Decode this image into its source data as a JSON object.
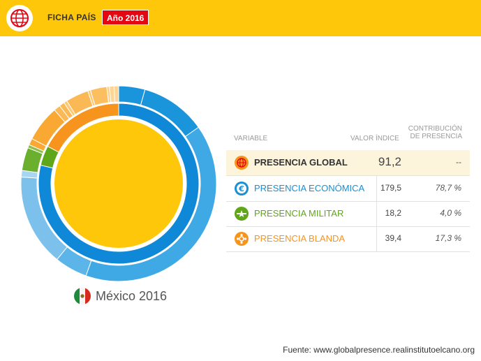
{
  "header": {
    "title": "FICHA PAÍS",
    "year_badge": "Año 2016",
    "colors": {
      "bar": "#fec70a",
      "badge": "#e30613"
    },
    "logo_icon": "globe-icon"
  },
  "country": {
    "name": "México 2016",
    "flag_icon": "mexico-flag-icon"
  },
  "table": {
    "headers": {
      "variable": "VARIABLE",
      "value": "VALOR ÍNDICE",
      "contribution_line1": "CONTRIBUCIÓN",
      "contribution_line2": "DE PRESENCIA"
    },
    "rows": [
      {
        "icon": "globe-icon",
        "label": "PRESENCIA GLOBAL",
        "value": "91,2",
        "contribution": "--",
        "color": "#333333",
        "bold": true
      },
      {
        "icon": "euro-icon",
        "label": "PRESENCIA ECONÓMICA",
        "value": "179,5",
        "contribution": "78,7 %",
        "color": "#1a8fd6"
      },
      {
        "icon": "military-star-icon",
        "label": "PRESENCIA MILITAR",
        "value": "18,2",
        "contribution": "4,0 %",
        "color": "#5fa619"
      },
      {
        "icon": "soft-power-icon",
        "label": "PRESENCIA BLANDA",
        "value": "39,4",
        "contribution": "17,3 %",
        "color": "#f7941d"
      }
    ]
  },
  "chart_data": {
    "type": "pie",
    "variant": "sunburst",
    "center": {
      "label": "Presencia global",
      "value": 91.2,
      "color": "#fec70a"
    },
    "rings": [
      {
        "name": "dimensions",
        "slices": [
          {
            "label": "Presencia económica",
            "value": 78.7,
            "color": "#0f88d8"
          },
          {
            "label": "Presencia militar",
            "value": 4.0,
            "color": "#5fa619"
          },
          {
            "label": "Presencia blanda",
            "value": 17.3,
            "color": "#f7941d"
          }
        ]
      },
      {
        "name": "indicators",
        "slices": [
          {
            "value": 4.0,
            "color": "#1a95dc"
          },
          {
            "value": 10.0,
            "color": "#1a95dc"
          },
          {
            "value": 37.0,
            "color": "#3fa9e5"
          },
          {
            "value": 5.0,
            "color": "#5cb5e8"
          },
          {
            "value": 14.0,
            "color": "#7cc1ec"
          },
          {
            "value": 1.0,
            "color": "#a8d6f2"
          },
          {
            "value": 3.5,
            "color": "#6aaf2d"
          },
          {
            "value": 0.5,
            "color": "#8cc04a"
          },
          {
            "value": 1.0,
            "color": "#f9a933"
          },
          {
            "value": 5.5,
            "color": "#f9a933"
          },
          {
            "value": 1.0,
            "color": "#fbb955"
          },
          {
            "value": 0.8,
            "color": "#fbb955"
          },
          {
            "value": 0.5,
            "color": "#fcc874"
          },
          {
            "value": 3.5,
            "color": "#fbb955"
          },
          {
            "value": 0.4,
            "color": "#fcc874"
          },
          {
            "value": 2.5,
            "color": "#fbbf60"
          },
          {
            "value": 0.4,
            "color": "#fcd08a"
          },
          {
            "value": 0.7,
            "color": "#fdd596"
          },
          {
            "value": 0.7,
            "color": "#fdd596"
          }
        ]
      }
    ]
  },
  "source": "Fuente: www.globalpresence.realinstitutoelcano.org"
}
